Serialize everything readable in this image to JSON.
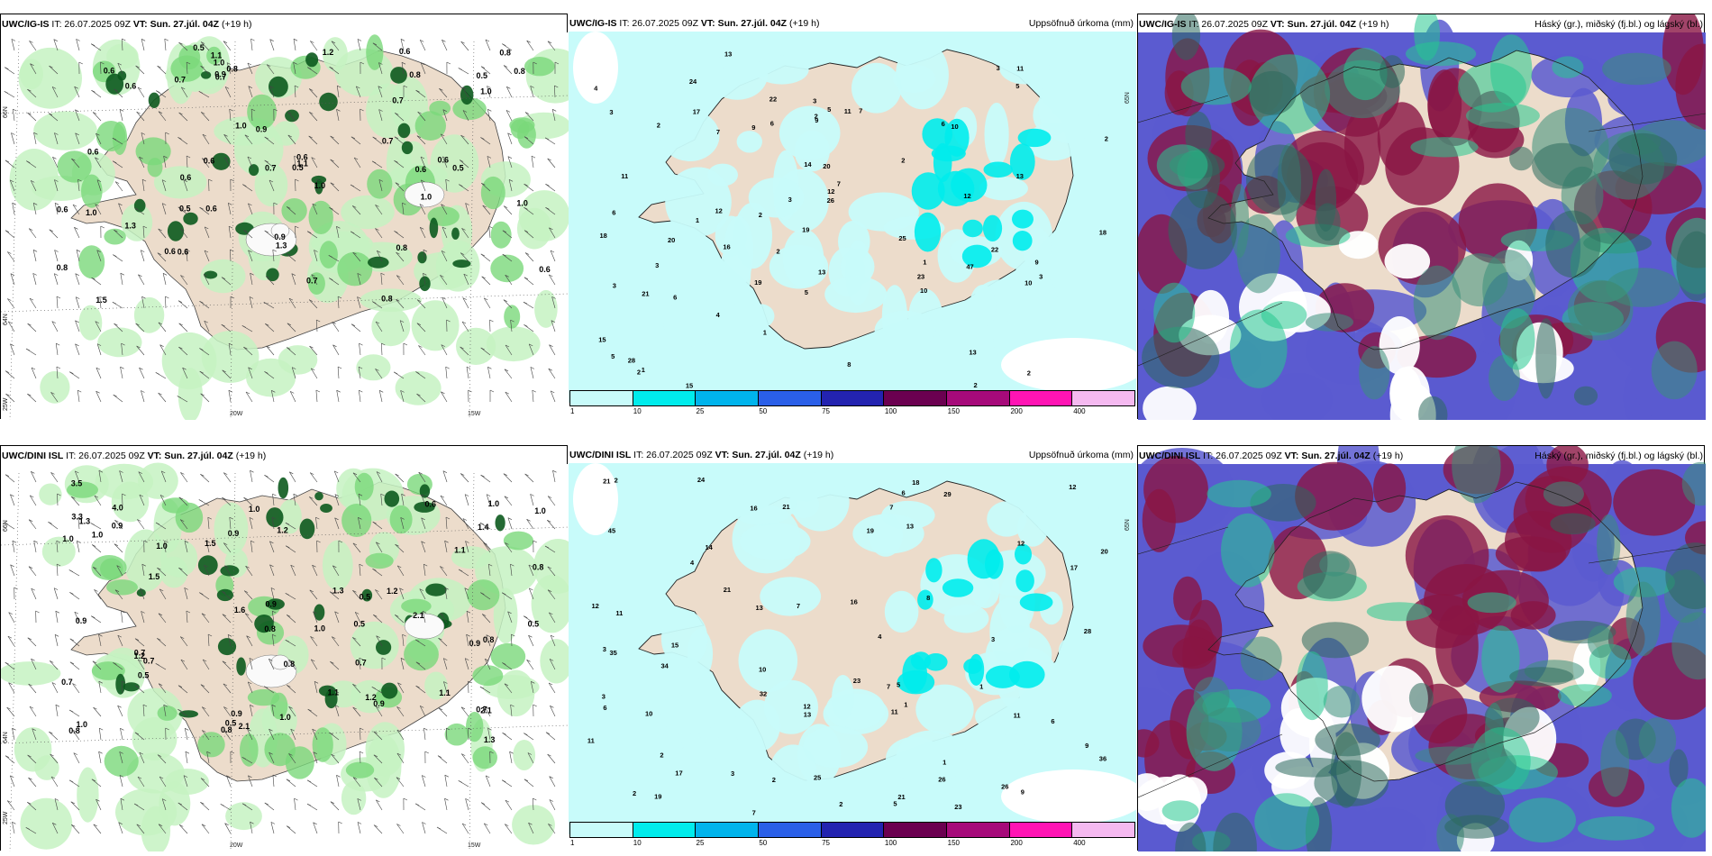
{
  "rows": [
    {
      "model": "UWC/IG-IS",
      "left": {
        "title": "UWC/IG-IS",
        "it": "IT: 26.07.2025 09Z",
        "vt": "VT: Sun. 27.júl. 04Z",
        "lead": "(+19 h)",
        "lat_labels": [
          "66N",
          "64N",
          "25W"
        ],
        "lon_labels": [
          "20W",
          "15W"
        ],
        "precip_values": [
          "0.5",
          "0.6",
          "0.6",
          "0.6",
          "0.8",
          "1.0",
          "0.8",
          "0.6",
          "1.0",
          "0.8",
          "0.6",
          "1.0",
          "1.0",
          "1.0",
          "1.3",
          "0.6",
          "0.7",
          "1.0",
          "0.6",
          "1.0",
          "0.8",
          "0.8",
          "0.6",
          "0.7",
          "0.9",
          "0.9",
          "0.5",
          "0.7",
          "0.7",
          "0.6",
          "0.6",
          "0.5",
          "0.7",
          "0.5",
          "0.6",
          "0.6",
          "0.7",
          "0.8",
          "1.3",
          "0.6",
          "0.5",
          "0.9",
          "1.1",
          "1.1",
          "1.2",
          "0.6",
          "0.8",
          "1.5"
        ]
      },
      "middle": {
        "title": "UWC/IG-IS",
        "it": "IT: 26.07.2025 09Z",
        "vt": "VT: Sun. 27.júl. 04Z",
        "lead": "(+19 h)",
        "right_title": "Uppsöfnuð úrkoma (mm)",
        "lat_labels": [
          "65N"
        ],
        "accum_values": [
          "1",
          "2",
          "2",
          "2",
          "3",
          "3",
          "1",
          "2",
          "2",
          "6",
          "5",
          "7",
          "9",
          "10",
          "11",
          "12",
          "13",
          "13",
          "13",
          "10",
          "11",
          "12",
          "13",
          "6",
          "8",
          "9",
          "10",
          "11",
          "12",
          "15",
          "18",
          "18",
          "15",
          "20",
          "22",
          "26",
          "28",
          "47",
          "20",
          "16",
          "14",
          "23",
          "19",
          "22",
          "24",
          "25",
          "21",
          "17",
          "19",
          "3",
          "2",
          "1",
          "2",
          "3",
          "4",
          "5",
          "6",
          "7",
          "3",
          "4",
          "5",
          "6",
          "3",
          "2",
          "1",
          "3",
          "5",
          "7",
          "9",
          "2"
        ]
      },
      "right": {
        "title": "UWC/IG-IS",
        "it": "IT: 26.07.2025 09Z",
        "vt": "VT: Sun. 27.júl. 04Z",
        "lead": "(+19 h)",
        "right_title": "Háský (gr.), miðský (fj.bl.) og lágský (bl.)"
      }
    },
    {
      "model": "UWC/DINI ISL",
      "left": {
        "title": "UWC/DINI ISL",
        "it": "IT: 26.07.2025 09Z",
        "vt": "VT: Sun. 27.júl. 04Z",
        "lead": "(+19 h)",
        "lat_labels": [
          "66N",
          "64N",
          "25W"
        ],
        "lon_labels": [
          "20W",
          "15W"
        ],
        "precip_values": [
          "0.8",
          "2.1",
          "2.1",
          "1.3",
          "0.7",
          "1.0",
          "0.9",
          "1.0",
          "0.8",
          "0.9",
          "0.8",
          "1.1",
          "0.5",
          "1.0",
          "1.3",
          "1.5",
          "0.5",
          "1.2",
          "0.6",
          "0.9",
          "0.7",
          "1.0",
          "0.9",
          "1.1",
          "1.4",
          "0.7",
          "0.9",
          "1.0",
          "1.3",
          "1.2",
          "1.2",
          "0.7",
          "0.5",
          "1.0",
          "0.9",
          "0.8",
          "1.5",
          "1.0",
          "4.0",
          "3.5",
          "3.3",
          "0.9",
          "0.5",
          "1.0",
          "0.8",
          "1.2",
          "2.1",
          "0.8",
          "1.1",
          "1.6",
          "0.7",
          "1.0",
          "0.5"
        ]
      },
      "middle": {
        "title": "UWC/DINI ISL",
        "it": "IT: 26.07.2025 09Z",
        "vt": "VT: Sun. 27.júl. 04Z",
        "lead": "(+19 h)",
        "right_title": "Uppsöfnuð úrkoma (mm)",
        "lat_labels": [
          "65N"
        ],
        "accum_values": [
          "1",
          "11",
          "12",
          "11",
          "10",
          "7",
          "3",
          "5",
          "13",
          "16",
          "17",
          "12",
          "10",
          "12",
          "11",
          "9",
          "8",
          "6",
          "7",
          "4",
          "3",
          "7",
          "13",
          "19",
          "21",
          "18",
          "26",
          "35",
          "34",
          "36",
          "28",
          "32",
          "21",
          "45",
          "23",
          "24",
          "23",
          "11",
          "9",
          "14",
          "15",
          "19",
          "20",
          "16",
          "29",
          "21",
          "26",
          "21",
          "25",
          "17",
          "13",
          "12",
          "3",
          "2",
          "1",
          "2",
          "3",
          "4",
          "5",
          "6",
          "7",
          "1",
          "2",
          "2",
          "2",
          "6"
        ]
      },
      "right": {
        "title": "UWC/DINI ISL",
        "it": "IT: 26.07.2025 09Z",
        "vt": "VT: Sun. 27.júl. 04Z",
        "lead": "(+19 h)",
        "right_title": "Háský (gr.), miðský (fj.bl.) og lágský (bl.)"
      }
    }
  ],
  "colorbar": {
    "ticks": [
      "1",
      "10",
      "25",
      "50",
      "75",
      "100",
      "150",
      "200",
      "400"
    ],
    "colors": [
      "#c8fbfa",
      "#00ecec",
      "#00b4ec",
      "#2a5fe8",
      "#2323b0",
      "#6b0050",
      "#a60a7a",
      "#ff14b4",
      "#f5b9f0"
    ]
  },
  "palette": {
    "land": "#ecdccb",
    "sea": "#ffffff",
    "precip_light": "#c6f2c2",
    "precip_mid": "#7ad87a",
    "precip_dark": "#0c5a1e",
    "accum_light": "#c8fbfa",
    "accum_mid": "#00ecec",
    "cloud_high": "#27c98f",
    "cloud_mid": "#8a1544",
    "cloud_low": "#5b5bd0"
  }
}
